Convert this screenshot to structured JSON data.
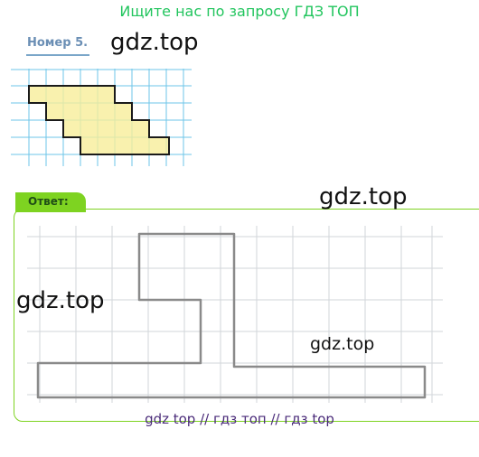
{
  "banner": {
    "text": "Ищите нас по запросу ГДЗ ТОП",
    "color": "#22c55e"
  },
  "task": {
    "label": "Номер 5."
  },
  "watermarks": [
    "gdz.top",
    "gdz.top",
    "gdz.top",
    "gdz.top"
  ],
  "answer": {
    "label": "Ответ:",
    "accent": "#7ed321"
  },
  "footer": {
    "text": "gdz top  //  гдз топ  //  гдз top"
  }
}
